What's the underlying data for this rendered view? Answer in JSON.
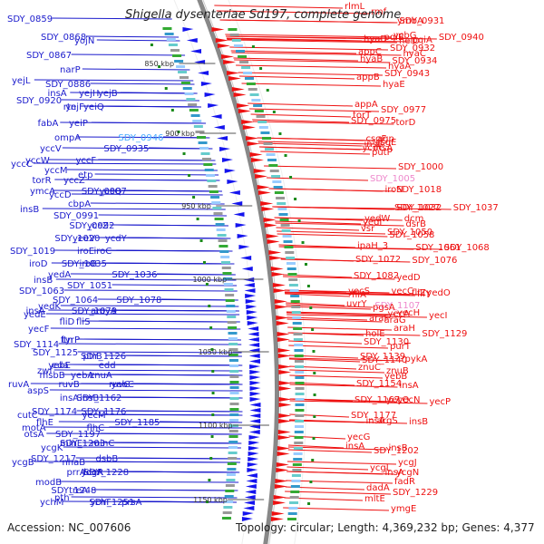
{
  "title": "Shigella dysenteriae Sd197, complete genome",
  "footer": {
    "accession": "Accession: NC_007606",
    "stats": "Topology: circular; Length: 4,369,232 bp; Genes: 4,377"
  },
  "colors": {
    "left_labels": "#1a1acc",
    "right_labels": "#ee1111",
    "highlight_left": "#44aaff",
    "highlight_right": "#ee88cc"
  },
  "scale_marks": [
    "850 kbp",
    "900 kbp",
    "950 kbp",
    "1000 kbp",
    "1050 kbp",
    "1100 kbp",
    "1150 kbp"
  ],
  "left_labels": [
    [
      "SDY_0859",
      20
    ],
    [
      "SDY_0868",
      40
    ],
    [
      "yojN",
      44
    ],
    [
      "SDY_0867",
      60
    ],
    [
      "narP",
      76
    ],
    [
      "yejL",
      88
    ],
    [
      "SDY_0886",
      92
    ],
    [
      "yejH",
      102
    ],
    [
      "insA",
      103
    ],
    [
      "yejB",
      103
    ],
    [
      "SDY_0920",
      110
    ],
    [
      "rtn",
      118
    ],
    [
      "yeiQ",
      117
    ],
    [
      "yejF",
      120
    ],
    [
      "yeiP",
      135
    ],
    [
      "fabA",
      138
    ],
    [
      "ompA",
      151
    ],
    [
      "SDY_0946",
      151,
      "hl"
    ],
    [
      "yccV",
      163
    ],
    [
      "SDY_0935",
      165
    ],
    [
      "yccW",
      176
    ],
    [
      "yccF",
      179
    ],
    [
      "yccC",
      180
    ],
    [
      "yccM",
      187
    ],
    [
      "etp",
      192
    ],
    [
      "ymcA",
      210
    ],
    [
      "yccZ",
      198
    ],
    [
      "torR",
      200
    ],
    [
      "yccD",
      214
    ],
    [
      "yccQ",
      213
    ],
    [
      "SDY_0987",
      213
    ],
    [
      "cbpA",
      224
    ],
    [
      "insB",
      230
    ],
    [
      "SDY_0991",
      237
    ],
    [
      "yccZ",
      248
    ],
    [
      "SDY_0992",
      248
    ],
    [
      "yeeV",
      262
    ],
    [
      "SDY_1020",
      262
    ],
    [
      "ycdY",
      262
    ],
    [
      "SDY_1019",
      276
    ],
    [
      "iroE",
      278
    ],
    [
      "iroC",
      277
    ],
    [
      "iroD",
      290
    ],
    [
      "iroB",
      290
    ],
    [
      "SDY_1035",
      291
    ],
    [
      "yedA",
      302
    ],
    [
      "SDY_1036",
      302
    ],
    [
      "insB",
      308
    ],
    [
      "SDY_1051",
      314
    ],
    [
      "SDY_1063",
      320
    ],
    [
      "SDY_1064",
      330
    ],
    [
      "SDY_1078",
      333
    ],
    [
      "yedK",
      337
    ],
    [
      "SDY_1079",
      342
    ],
    [
      "yedE",
      346
    ],
    [
      "amyA",
      345
    ],
    [
      "insA",
      344
    ],
    [
      "fliD",
      356
    ],
    [
      "fliS",
      354
    ],
    [
      "yecF",
      362
    ],
    [
      "tyrP",
      374
    ],
    [
      "SDY_1114",
      379
    ],
    [
      "ftn",
      377
    ],
    [
      "SDY_1126",
      392
    ],
    [
      "SDY_1125",
      388
    ],
    [
      "ptrB",
      393
    ],
    [
      "yebE",
      405
    ],
    [
      "eda",
      402
    ],
    [
      "edd",
      402
    ],
    [
      "zwf",
      408
    ],
    [
      "yebA",
      413
    ],
    [
      "msbB",
      413
    ],
    [
      "znuA",
      413
    ],
    [
      "ruvA",
      423
    ],
    [
      "ruvB",
      423
    ],
    [
      "ruvC",
      425
    ],
    [
      "aspS",
      430
    ],
    [
      "yebC",
      425
    ],
    [
      "insA",
      441
    ],
    [
      "SDY_1162",
      440
    ],
    [
      "insB",
      438
    ],
    [
      "SDY_1174",
      453
    ],
    [
      "yecM",
      458
    ],
    [
      "cutC",
      457
    ],
    [
      "SDY_1176",
      456
    ],
    [
      "SDY_1185",
      466
    ],
    [
      "flhE",
      465
    ],
    [
      "flhC",
      472
    ],
    [
      "motA",
      471
    ],
    [
      "SDY_1197",
      478
    ],
    [
      "otsA",
      478
    ],
    [
      "ycgK",
      493
    ],
    [
      "minC",
      491
    ],
    [
      "minE",
      491
    ],
    [
      "SDY_1203",
      488
    ],
    [
      "ycgB",
      509
    ],
    [
      "nhaB",
      509
    ],
    [
      "dsbB",
      507
    ],
    [
      "SDY_1217",
      505
    ],
    [
      "ycgR",
      521
    ],
    [
      "prrA",
      523
    ],
    [
      "ldcA",
      521
    ],
    [
      "SDY_1228",
      520
    ],
    [
      "modB",
      531
    ],
    [
      "treA",
      540
    ],
    [
      "SDY_1248",
      542
    ],
    [
      "pth",
      548
    ],
    [
      "prsA",
      554
    ],
    [
      "ychM",
      553
    ],
    [
      "ychF",
      553
    ],
    [
      "SDY_1251",
      556
    ]
  ],
  "right_labels": [
    [
      "rlmL",
      6
    ],
    [
      "rmf",
      12
    ],
    [
      "ymbA",
      22
    ],
    [
      "SDY_0931",
      22
    ],
    [
      "pqiA",
      43
    ],
    [
      "pqiB",
      40
    ],
    [
      "ycbG",
      38
    ],
    [
      "helD",
      44
    ],
    [
      "SDY_0940",
      40
    ],
    [
      "hyaD",
      42
    ],
    [
      "SDY_0932",
      52
    ],
    [
      "SDY_0934",
      66
    ],
    [
      "hyaA",
      72
    ],
    [
      "hyaB",
      64
    ],
    [
      "hyaC",
      58
    ],
    [
      "appC",
      56
    ],
    [
      "SDY_0943",
      80
    ],
    [
      "appB",
      84
    ],
    [
      "hyaE",
      92
    ],
    [
      "appA",
      114
    ],
    [
      "SDY_0977",
      120
    ],
    [
      "torT",
      126
    ],
    [
      "torD",
      134
    ],
    [
      "SDY_0975",
      132
    ],
    [
      "agp",
      152
    ],
    [
      "csgF",
      152
    ],
    [
      "csgE",
      156
    ],
    [
      "insB",
      158
    ],
    [
      "insA",
      162
    ],
    [
      "ycdC",
      162
    ],
    [
      "putP",
      167
    ],
    [
      "SDY_1000",
      183
    ],
    [
      "SDY_1005",
      196,
      "hl"
    ],
    [
      "SDY_1018",
      208
    ],
    [
      "iroN",
      208
    ],
    [
      "SDY_1027",
      228
    ],
    [
      "SDY_1032",
      228
    ],
    [
      "SDY_1037",
      228
    ],
    [
      "yedW",
      240
    ],
    [
      "dcm",
      240
    ],
    [
      "yedI",
      244
    ],
    [
      "dsrB",
      246
    ],
    [
      "vsr",
      251
    ],
    [
      "SDY_1050",
      255
    ],
    [
      "SDY_1058",
      258
    ],
    [
      "SDY_1061",
      272
    ],
    [
      "ipaH_3",
      270
    ],
    [
      "SDY_1068",
      272
    ],
    [
      "SDY_1072",
      285
    ],
    [
      "SDY_1076",
      286
    ],
    [
      "SDY_1082",
      303
    ],
    [
      "yedD",
      305
    ],
    [
      "fliA",
      324
    ],
    [
      "fliZ",
      322
    ],
    [
      "fliY",
      323
    ],
    [
      "yedO",
      322
    ],
    [
      "yecS",
      320
    ],
    [
      "yecC",
      320
    ],
    [
      "uvrY",
      334
    ],
    [
      "pgsA",
      338
    ],
    [
      "SDY_1107",
      336,
      "hl"
    ],
    [
      "yecA",
      345
    ],
    [
      "yecH",
      344
    ],
    [
      "araF",
      350
    ],
    [
      "yecI",
      347
    ],
    [
      "araG",
      352
    ],
    [
      "araH",
      361
    ],
    [
      "holE",
      367
    ],
    [
      "SDY_1129",
      367
    ],
    [
      "SDY_1130",
      376
    ],
    [
      "purT",
      381
    ],
    [
      "SDY_1140",
      396
    ],
    [
      "pykA",
      395
    ],
    [
      "SDY_1139",
      392
    ],
    [
      "znuB",
      408
    ],
    [
      "znuC",
      404
    ],
    [
      "yebB",
      414
    ],
    [
      "SDY_1154",
      422
    ],
    [
      "insA",
      424
    ],
    [
      "SDY_1167",
      440
    ],
    [
      "yecN",
      440
    ],
    [
      "yecO",
      440
    ],
    [
      "yecP",
      442
    ],
    [
      "SDY_1177",
      457
    ],
    [
      "argS",
      463
    ],
    [
      "insA",
      463
    ],
    [
      "insB",
      464
    ],
    [
      "yecG",
      481
    ],
    [
      "SDY_1202",
      496
    ],
    [
      "insA",
      491
    ],
    [
      "insB",
      493
    ],
    [
      "ycgJ",
      509
    ],
    [
      "ycgL",
      515
    ],
    [
      "ycgN",
      520
    ],
    [
      "insA",
      520
    ],
    [
      "fadR",
      530
    ],
    [
      "dadA",
      537
    ],
    [
      "SDY_1229",
      542
    ],
    [
      "mltE",
      549
    ],
    [
      "ymgE",
      560
    ]
  ]
}
